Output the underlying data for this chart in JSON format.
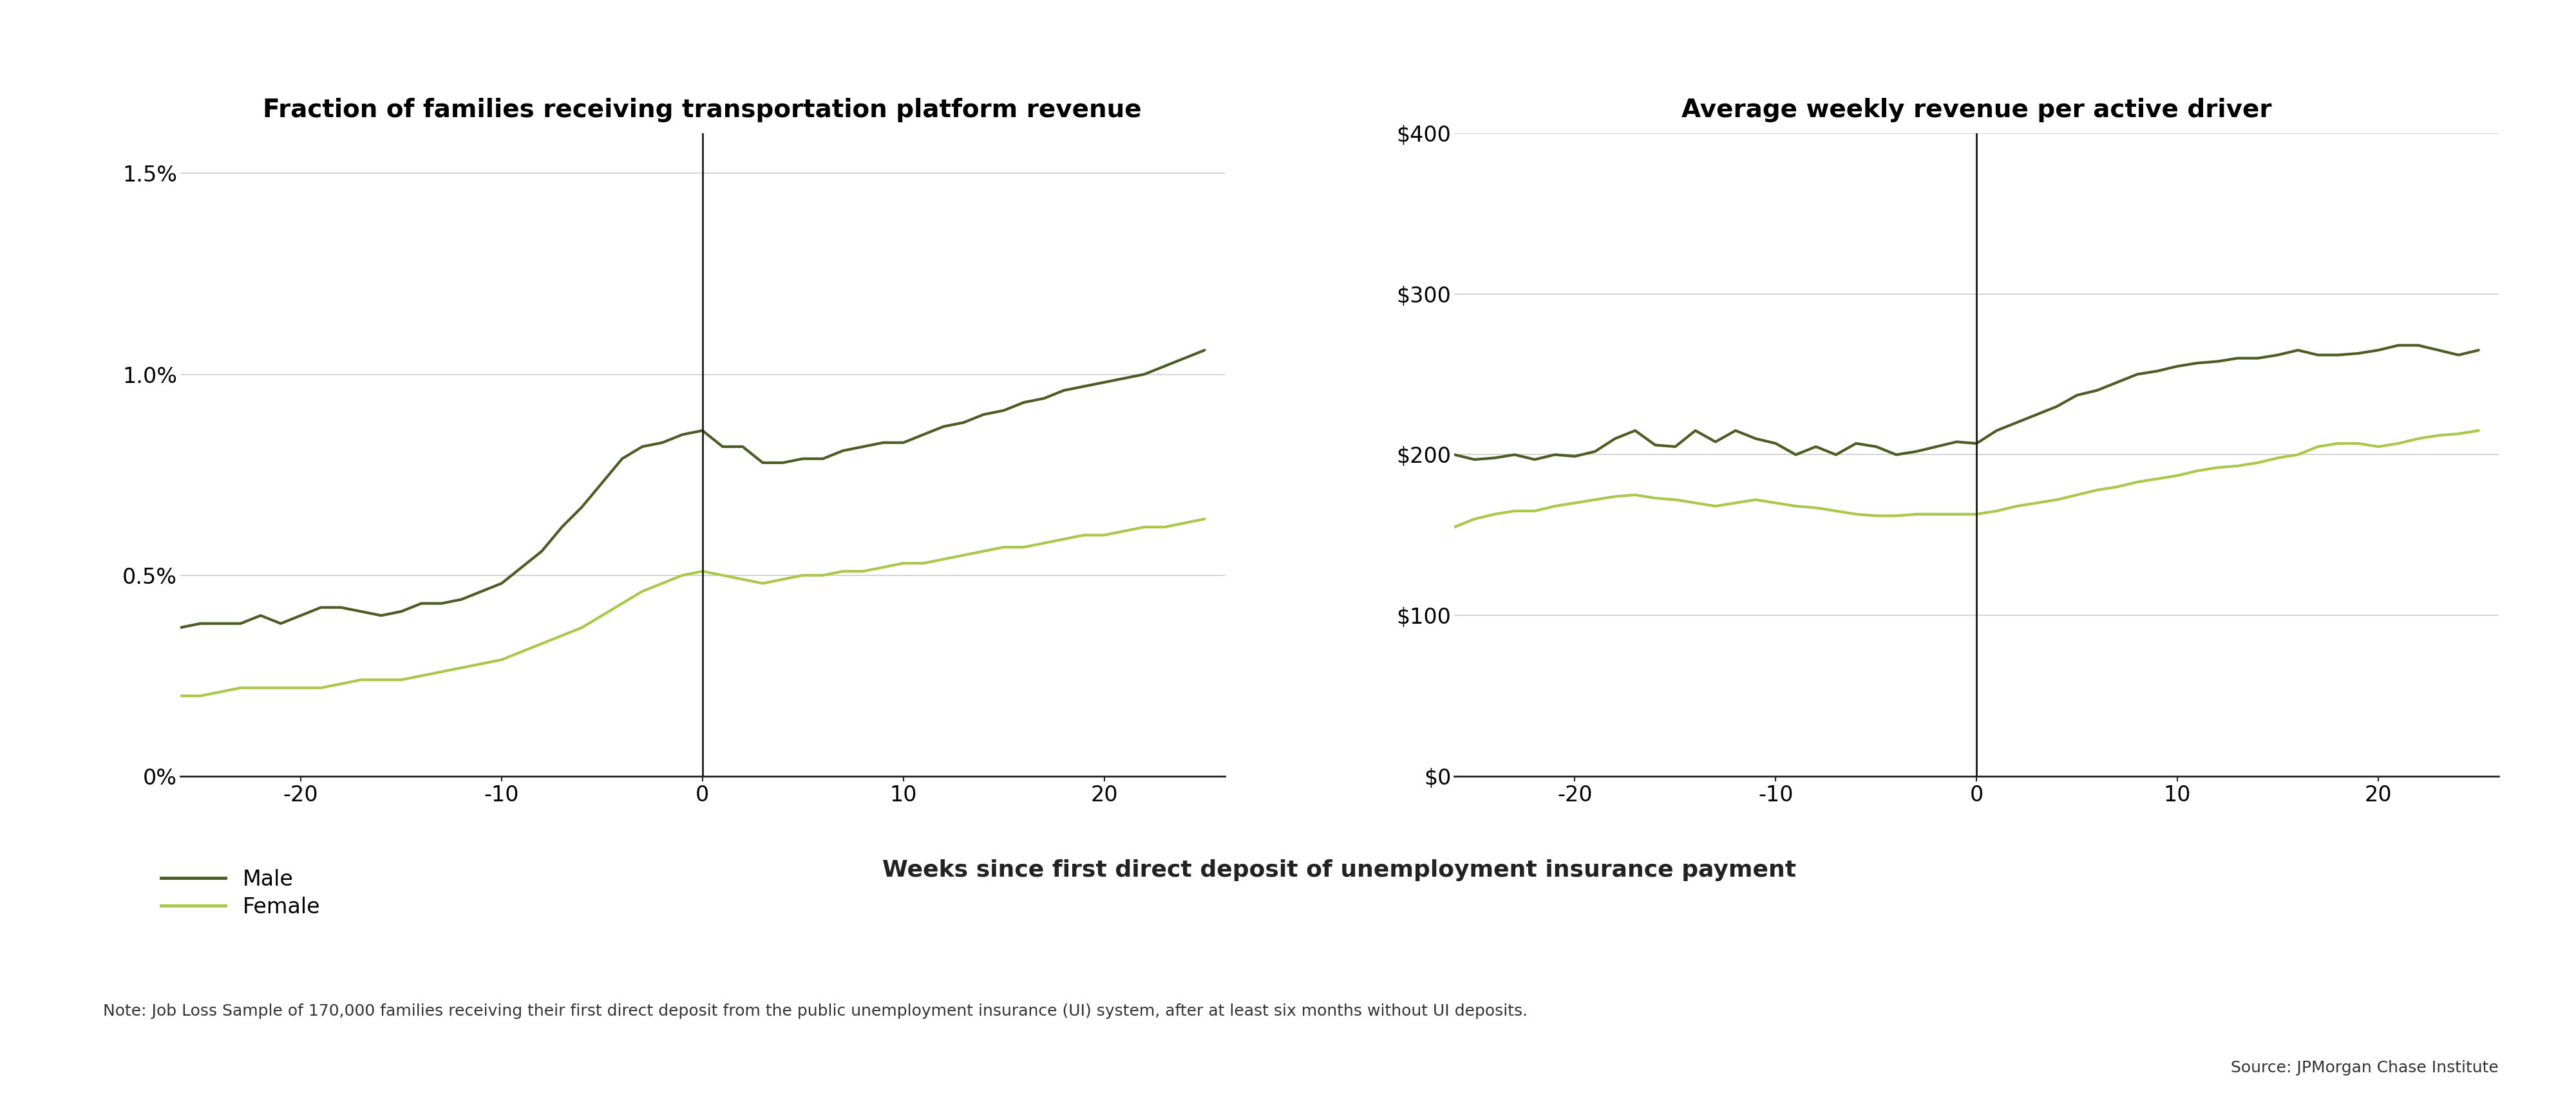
{
  "title1": "Fraction of families receiving transportation platform revenue",
  "title2": "Average weekly revenue per active driver",
  "xlabel": "Weeks since first direct deposit of unemployment insurance payment",
  "legend_male": "Male",
  "legend_female": "Female",
  "note": "Note: Job Loss Sample of 170,000 families receiving their first direct deposit from the public unemployment insurance (UI) system, after at least six months without UI deposits.",
  "source": "Source: JPMorgan Chase Institute",
  "color_male": "#4a5e23",
  "color_female": "#a8c84a",
  "vline_color": "#1a1a1a",
  "grid_color": "#cccccc",
  "background_color": "#ffffff",
  "plot1_ylim": [
    0,
    0.016
  ],
  "plot1_yticks": [
    0,
    0.005,
    0.01,
    0.015
  ],
  "plot1_ytick_labels": [
    "0%",
    "0.5%",
    "1.0%",
    "1.5%"
  ],
  "plot2_ylim": [
    0,
    400
  ],
  "plot2_yticks": [
    0,
    100,
    200,
    300,
    400
  ],
  "plot2_ytick_labels": [
    "$0",
    "$100",
    "$200",
    "$300",
    "$400"
  ],
  "x_range": [
    -26,
    26
  ],
  "xticks": [
    -20,
    -10,
    0,
    10,
    20
  ],
  "x": [
    -26,
    -25,
    -24,
    -23,
    -22,
    -21,
    -20,
    -19,
    -18,
    -17,
    -16,
    -15,
    -14,
    -13,
    -12,
    -11,
    -10,
    -9,
    -8,
    -7,
    -6,
    -5,
    -4,
    -3,
    -2,
    -1,
    0,
    1,
    2,
    3,
    4,
    5,
    6,
    7,
    8,
    9,
    10,
    11,
    12,
    13,
    14,
    15,
    16,
    17,
    18,
    19,
    20,
    21,
    22,
    23,
    24,
    25
  ],
  "male_frac_y": [
    0.0037,
    0.0038,
    0.0038,
    0.0038,
    0.004,
    0.0038,
    0.004,
    0.0042,
    0.0042,
    0.0041,
    0.004,
    0.0041,
    0.0043,
    0.0043,
    0.0044,
    0.0046,
    0.0048,
    0.0052,
    0.0056,
    0.0062,
    0.0067,
    0.0073,
    0.0079,
    0.0082,
    0.0083,
    0.0085,
    0.0086,
    0.0082,
    0.0082,
    0.0078,
    0.0078,
    0.0079,
    0.0079,
    0.0081,
    0.0082,
    0.0083,
    0.0083,
    0.0085,
    0.0087,
    0.0088,
    0.009,
    0.0091,
    0.0093,
    0.0094,
    0.0096,
    0.0097,
    0.0098,
    0.0099,
    0.01,
    0.0102,
    0.0104,
    0.0106
  ],
  "female_frac_y": [
    0.002,
    0.002,
    0.0021,
    0.0022,
    0.0022,
    0.0022,
    0.0022,
    0.0022,
    0.0023,
    0.0024,
    0.0024,
    0.0024,
    0.0025,
    0.0026,
    0.0027,
    0.0028,
    0.0029,
    0.0031,
    0.0033,
    0.0035,
    0.0037,
    0.004,
    0.0043,
    0.0046,
    0.0048,
    0.005,
    0.0051,
    0.005,
    0.0049,
    0.0048,
    0.0049,
    0.005,
    0.005,
    0.0051,
    0.0051,
    0.0052,
    0.0053,
    0.0053,
    0.0054,
    0.0055,
    0.0056,
    0.0057,
    0.0057,
    0.0058,
    0.0059,
    0.006,
    0.006,
    0.0061,
    0.0062,
    0.0062,
    0.0063,
    0.0064
  ],
  "male_rev_y": [
    200,
    197,
    198,
    200,
    197,
    200,
    199,
    202,
    210,
    215,
    206,
    205,
    215,
    208,
    215,
    210,
    207,
    200,
    205,
    200,
    207,
    205,
    200,
    202,
    205,
    208,
    207,
    215,
    220,
    225,
    230,
    237,
    240,
    245,
    250,
    252,
    255,
    257,
    258,
    260,
    260,
    262,
    265,
    262,
    262,
    263,
    265,
    268,
    268,
    265,
    262,
    265
  ],
  "female_rev_y": [
    155,
    160,
    163,
    165,
    165,
    168,
    170,
    172,
    174,
    175,
    173,
    172,
    170,
    168,
    170,
    172,
    170,
    168,
    167,
    165,
    163,
    162,
    162,
    163,
    163,
    163,
    163,
    165,
    168,
    170,
    172,
    175,
    178,
    180,
    183,
    185,
    187,
    190,
    192,
    193,
    195,
    198,
    200,
    205,
    207,
    207,
    205,
    207,
    210,
    212,
    213,
    215
  ],
  "title_fontsize": 28,
  "tick_fontsize": 24,
  "xlabel_fontsize": 26,
  "legend_fontsize": 24,
  "note_fontsize": 18,
  "source_fontsize": 18,
  "linewidth": 3.0
}
